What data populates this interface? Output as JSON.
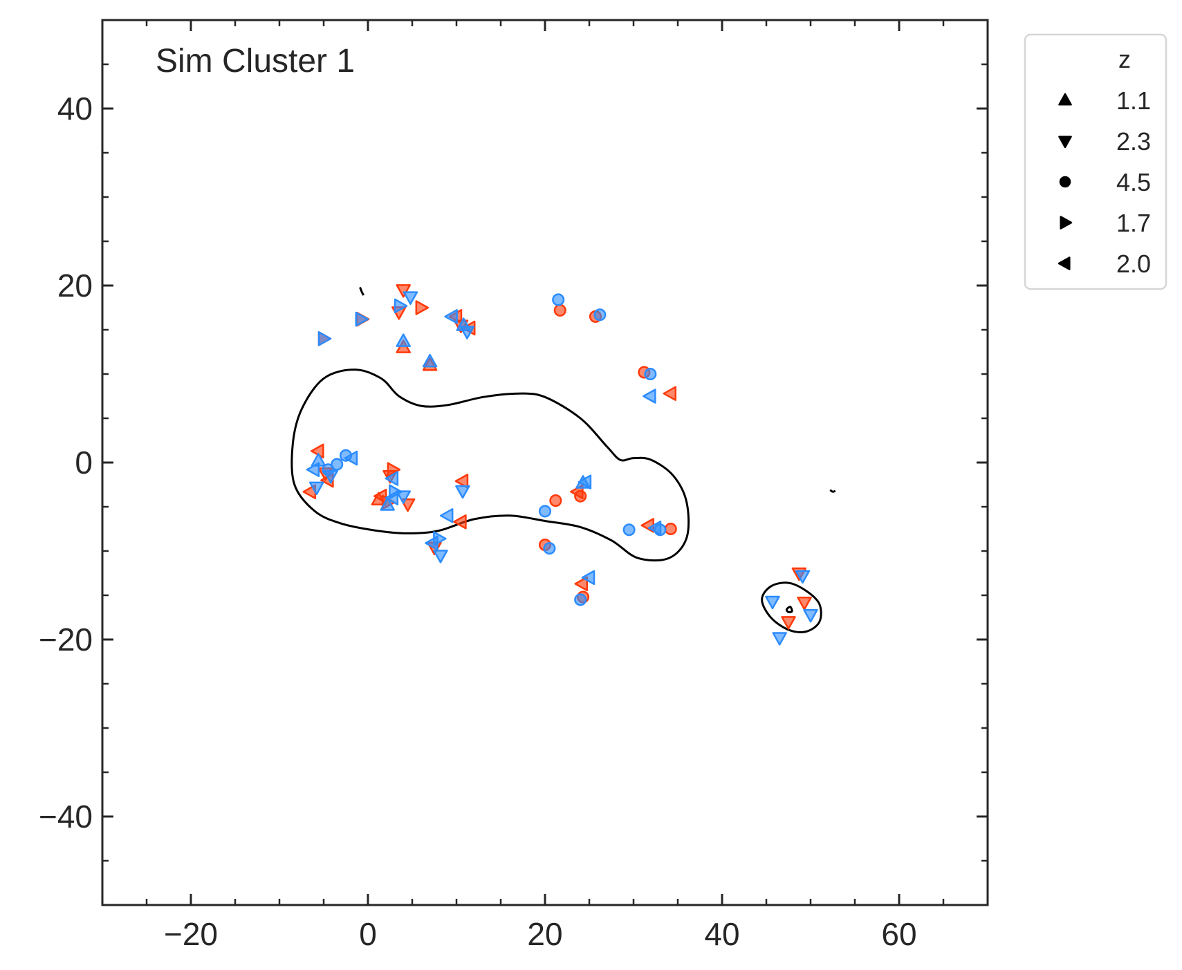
{
  "chart_data": {
    "type": "scatter",
    "title": "Sim Cluster 1",
    "xlabel": "",
    "ylabel": "",
    "xlim": [
      -30,
      70
    ],
    "ylim": [
      -50,
      50
    ],
    "xticks": [
      -20,
      0,
      20,
      40,
      60
    ],
    "xtick_labels": [
      "−20",
      "0",
      "20",
      "40",
      "60"
    ],
    "yticks": [
      -40,
      -20,
      0,
      20,
      40
    ],
    "ytick_labels": [
      "−40",
      "−20",
      "0",
      "20",
      "40"
    ],
    "legend": {
      "title": "z",
      "placement": "outside-upper-right",
      "entries": [
        {
          "marker": "triangle-up",
          "label": "1.1"
        },
        {
          "marker": "triangle-down",
          "label": "2.3"
        },
        {
          "marker": "circle",
          "label": "4.5"
        },
        {
          "marker": "triangle-right",
          "label": "1.7"
        },
        {
          "marker": "triangle-left",
          "label": "2.0"
        }
      ]
    },
    "colors": {
      "red": "#ff3a0a",
      "blue": "#2b8cff",
      "contour": "#000000",
      "axis": "#262626"
    },
    "series": [
      {
        "name": "red",
        "color": "#ff3a0a",
        "points": [
          {
            "x": 4.0,
            "y": 19.5,
            "marker": "triangle-down"
          },
          {
            "x": 3.5,
            "y": 17.0,
            "marker": "triangle-down"
          },
          {
            "x": 6.0,
            "y": 17.5,
            "marker": "triangle-right"
          },
          {
            "x": -0.7,
            "y": 16.2,
            "marker": "triangle-right"
          },
          {
            "x": -5.0,
            "y": 14.0,
            "marker": "triangle-right"
          },
          {
            "x": 4.0,
            "y": 13.0,
            "marker": "triangle-up"
          },
          {
            "x": 7.0,
            "y": 11.0,
            "marker": "triangle-up"
          },
          {
            "x": 10.0,
            "y": 16.5,
            "marker": "triangle-left"
          },
          {
            "x": 10.5,
            "y": 15.5,
            "marker": "triangle-down"
          },
          {
            "x": 11.5,
            "y": 15.2,
            "marker": "triangle-left"
          },
          {
            "x": 21.7,
            "y": 17.2,
            "marker": "circle"
          },
          {
            "x": 25.7,
            "y": 16.5,
            "marker": "circle"
          },
          {
            "x": 31.2,
            "y": 10.2,
            "marker": "circle"
          },
          {
            "x": 34.2,
            "y": 7.8,
            "marker": "triangle-left"
          },
          {
            "x": -5.6,
            "y": 1.3,
            "marker": "triangle-left"
          },
          {
            "x": -6.5,
            "y": -3.3,
            "marker": "triangle-left"
          },
          {
            "x": -4.5,
            "y": -2.0,
            "marker": "triangle-left"
          },
          {
            "x": -4.8,
            "y": -1.2,
            "marker": "triangle-down"
          },
          {
            "x": 2.8,
            "y": -0.8,
            "marker": "triangle-right"
          },
          {
            "x": 2.5,
            "y": -1.5,
            "marker": "triangle-down"
          },
          {
            "x": 1.5,
            "y": -3.8,
            "marker": "triangle-left"
          },
          {
            "x": 1.2,
            "y": -4.2,
            "marker": "triangle-up"
          },
          {
            "x": 2.2,
            "y": -4.5,
            "marker": "triangle-right"
          },
          {
            "x": 4.5,
            "y": -4.7,
            "marker": "triangle-down"
          },
          {
            "x": 10.7,
            "y": -2.1,
            "marker": "triangle-left"
          },
          {
            "x": 10.5,
            "y": -6.7,
            "marker": "triangle-left"
          },
          {
            "x": 7.5,
            "y": -9.6,
            "marker": "triangle-down"
          },
          {
            "x": 21.2,
            "y": -4.3,
            "marker": "circle"
          },
          {
            "x": 23.7,
            "y": -3.3,
            "marker": "triangle-left"
          },
          {
            "x": 24.0,
            "y": -3.8,
            "marker": "circle"
          },
          {
            "x": 20.0,
            "y": -9.3,
            "marker": "circle"
          },
          {
            "x": 31.7,
            "y": -7.1,
            "marker": "triangle-left"
          },
          {
            "x": 34.2,
            "y": -7.5,
            "marker": "circle"
          },
          {
            "x": 24.3,
            "y": -15.2,
            "marker": "circle"
          },
          {
            "x": 24.2,
            "y": -13.7,
            "marker": "triangle-left"
          },
          {
            "x": 48.7,
            "y": -12.5,
            "marker": "triangle-down"
          },
          {
            "x": 49.3,
            "y": -15.8,
            "marker": "triangle-down"
          },
          {
            "x": 47.5,
            "y": -18.0,
            "marker": "triangle-down"
          }
        ]
      },
      {
        "name": "blue",
        "color": "#2b8cff",
        "points": [
          {
            "x": 4.8,
            "y": 18.7,
            "marker": "triangle-down"
          },
          {
            "x": 3.6,
            "y": 17.7,
            "marker": "triangle-right"
          },
          {
            "x": 9.5,
            "y": 16.5,
            "marker": "triangle-left"
          },
          {
            "x": 10.8,
            "y": 15.5,
            "marker": "triangle-up"
          },
          {
            "x": 11.2,
            "y": 14.8,
            "marker": "triangle-down"
          },
          {
            "x": 4.0,
            "y": 13.7,
            "marker": "triangle-up"
          },
          {
            "x": 7.0,
            "y": 11.4,
            "marker": "triangle-up"
          },
          {
            "x": -0.8,
            "y": 16.2,
            "marker": "triangle-right"
          },
          {
            "x": -5.0,
            "y": 14.0,
            "marker": "triangle-right"
          },
          {
            "x": 21.5,
            "y": 18.4,
            "marker": "circle"
          },
          {
            "x": 26.2,
            "y": 16.7,
            "marker": "circle"
          },
          {
            "x": 31.9,
            "y": 10.0,
            "marker": "circle"
          },
          {
            "x": 31.9,
            "y": 7.5,
            "marker": "triangle-left"
          },
          {
            "x": -6.1,
            "y": -0.8,
            "marker": "triangle-left"
          },
          {
            "x": -5.8,
            "y": -2.8,
            "marker": "triangle-down"
          },
          {
            "x": -5.6,
            "y": 0.2,
            "marker": "triangle-up"
          },
          {
            "x": -4.5,
            "y": -0.8,
            "marker": "circle"
          },
          {
            "x": -3.5,
            "y": -0.2,
            "marker": "circle"
          },
          {
            "x": -2.5,
            "y": 0.8,
            "marker": "circle"
          },
          {
            "x": -1.8,
            "y": 0.5,
            "marker": "triangle-left"
          },
          {
            "x": -4.2,
            "y": -1.5,
            "marker": "triangle-down"
          },
          {
            "x": 2.8,
            "y": -1.8,
            "marker": "triangle-left"
          },
          {
            "x": 3.0,
            "y": -3.3,
            "marker": "triangle-right"
          },
          {
            "x": 4.0,
            "y": -3.8,
            "marker": "triangle-down"
          },
          {
            "x": 2.2,
            "y": -4.8,
            "marker": "triangle-up"
          },
          {
            "x": 2.8,
            "y": -4.0,
            "marker": "triangle-left"
          },
          {
            "x": 10.7,
            "y": -3.2,
            "marker": "triangle-down"
          },
          {
            "x": 9.0,
            "y": -6.0,
            "marker": "triangle-left"
          },
          {
            "x": 7.3,
            "y": -9.1,
            "marker": "triangle-left"
          },
          {
            "x": 8.0,
            "y": -8.6,
            "marker": "triangle-right"
          },
          {
            "x": 8.2,
            "y": -10.5,
            "marker": "triangle-down"
          },
          {
            "x": 20.0,
            "y": -5.5,
            "marker": "circle"
          },
          {
            "x": 24.3,
            "y": -2.3,
            "marker": "triangle-up"
          },
          {
            "x": 24.6,
            "y": -2.2,
            "marker": "triangle-left"
          },
          {
            "x": 20.5,
            "y": -9.7,
            "marker": "circle"
          },
          {
            "x": 29.5,
            "y": -7.6,
            "marker": "circle"
          },
          {
            "x": 33.0,
            "y": -7.6,
            "marker": "circle"
          },
          {
            "x": 32.5,
            "y": -7.4,
            "marker": "triangle-left"
          },
          {
            "x": 24.0,
            "y": -15.5,
            "marker": "circle"
          },
          {
            "x": 25.0,
            "y": -13.0,
            "marker": "triangle-left"
          },
          {
            "x": 45.7,
            "y": -15.7,
            "marker": "triangle-down"
          },
          {
            "x": 49.1,
            "y": -12.8,
            "marker": "triangle-down"
          },
          {
            "x": 50.0,
            "y": -17.2,
            "marker": "triangle-down"
          },
          {
            "x": 46.5,
            "y": -19.8,
            "marker": "triangle-down"
          }
        ]
      }
    ],
    "contours": [
      {
        "name": "main-contour",
        "closed": true,
        "points": [
          [
            -8.5,
            2.0
          ],
          [
            -7.5,
            6.0
          ],
          [
            -5.0,
            9.5
          ],
          [
            -1.5,
            10.5
          ],
          [
            1.5,
            9.5
          ],
          [
            3.5,
            7.5
          ],
          [
            6.0,
            6.4
          ],
          [
            9.0,
            6.5
          ],
          [
            13.0,
            7.4
          ],
          [
            17.0,
            7.8
          ],
          [
            20.0,
            7.4
          ],
          [
            24.0,
            5.0
          ],
          [
            27.0,
            1.8
          ],
          [
            28.5,
            0.3
          ],
          [
            30.0,
            0.5
          ],
          [
            32.0,
            0.3
          ],
          [
            34.5,
            -1.5
          ],
          [
            36.0,
            -4.5
          ],
          [
            36.0,
            -8.5
          ],
          [
            34.0,
            -10.8
          ],
          [
            30.5,
            -10.8
          ],
          [
            27.5,
            -8.8
          ],
          [
            24.0,
            -7.3
          ],
          [
            20.0,
            -6.6
          ],
          [
            16.0,
            -6.0
          ],
          [
            12.0,
            -6.4
          ],
          [
            8.0,
            -7.7
          ],
          [
            4.5,
            -8.0
          ],
          [
            1.0,
            -7.7
          ],
          [
            -3.0,
            -6.9
          ],
          [
            -6.0,
            -5.5
          ],
          [
            -8.3,
            -2.5
          ]
        ]
      },
      {
        "name": "small-contour",
        "closed": true,
        "points": [
          [
            44.5,
            -15.5
          ],
          [
            45.5,
            -14.0
          ],
          [
            47.5,
            -13.6
          ],
          [
            49.5,
            -14.5
          ],
          [
            51.0,
            -16.0
          ],
          [
            51.0,
            -18.0
          ],
          [
            49.5,
            -19.1
          ],
          [
            47.5,
            -18.9
          ],
          [
            45.5,
            -17.5
          ]
        ]
      },
      {
        "name": "contour-blob-top",
        "closed": false,
        "points": [
          [
            -0.9,
            19.8
          ],
          [
            -0.7,
            19.3
          ],
          [
            -0.5,
            18.9
          ]
        ]
      },
      {
        "name": "contour-blob-right",
        "closed": false,
        "points": [
          [
            52.2,
            -3.1
          ],
          [
            52.5,
            -3.3
          ],
          [
            52.8,
            -3.2
          ]
        ]
      },
      {
        "name": "contour-blob-small",
        "closed": true,
        "points": [
          [
            47.3,
            -16.6
          ],
          [
            47.7,
            -16.3
          ],
          [
            47.9,
            -16.8
          ],
          [
            47.5,
            -16.9
          ]
        ]
      }
    ]
  }
}
